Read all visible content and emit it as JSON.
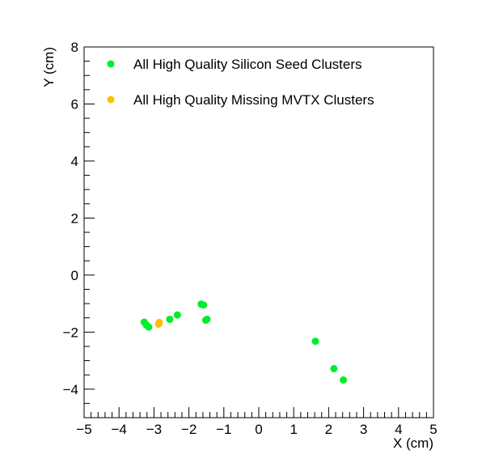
{
  "chart_data": {
    "type": "scatter",
    "xlabel": "X (cm)",
    "ylabel": "Y (cm)",
    "xlim": [
      -5,
      5
    ],
    "ylim": [
      -5,
      8
    ],
    "x_ticks": [
      -5,
      -4,
      -3,
      -2,
      -1,
      0,
      1,
      2,
      3,
      4,
      5
    ],
    "y_ticks": [
      -4,
      -2,
      0,
      2,
      4,
      6,
      8
    ],
    "x_tick_labels": [
      "−5",
      "−4",
      "−3",
      "−2",
      "−1",
      "0",
      "1",
      "2",
      "3",
      "4",
      "5"
    ],
    "y_tick_labels": [
      "−4",
      "−2",
      "0",
      "2",
      "4",
      "6",
      "8"
    ],
    "grid": false,
    "legend_position": "top",
    "series": [
      {
        "name": "All High Quality Silicon Seed Clusters",
        "color": "#00ee2b",
        "points": [
          {
            "x": -3.28,
            "y": -1.65
          },
          {
            "x": -3.22,
            "y": -1.75
          },
          {
            "x": -3.15,
            "y": -1.82
          },
          {
            "x": -2.55,
            "y": -1.55
          },
          {
            "x": -2.33,
            "y": -1.4
          },
          {
            "x": -1.65,
            "y": -1.02
          },
          {
            "x": -1.58,
            "y": -1.05
          },
          {
            "x": -1.52,
            "y": -1.58
          },
          {
            "x": -1.48,
            "y": -1.55
          },
          {
            "x": 1.62,
            "y": -2.32
          },
          {
            "x": 2.15,
            "y": -3.28
          },
          {
            "x": 2.42,
            "y": -3.68
          }
        ]
      },
      {
        "name": "All High Quality Missing MVTX Clusters",
        "color": "#ffbf00",
        "points": [
          {
            "x": -2.87,
            "y": -1.72
          },
          {
            "x": -2.85,
            "y": -1.66
          }
        ]
      }
    ]
  }
}
